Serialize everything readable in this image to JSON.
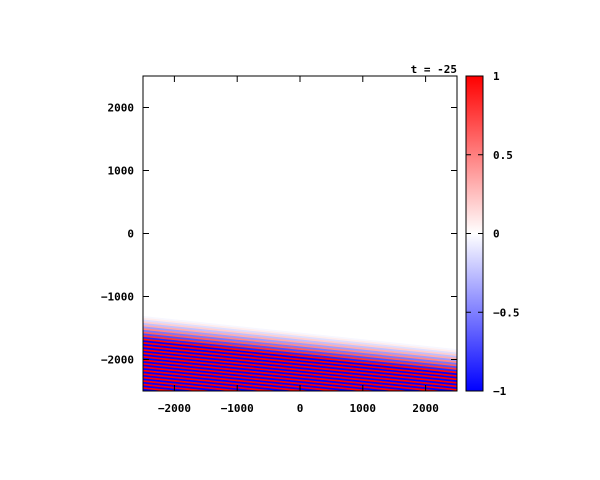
{
  "chart_data": {
    "type": "heatmap",
    "title": "t = -25",
    "xlabel": "",
    "ylabel": "",
    "xlim": [
      -2500,
      2500
    ],
    "ylim": [
      -2500,
      2500
    ],
    "x_ticks": [
      -2000,
      -1000,
      0,
      1000,
      2000
    ],
    "x_tick_labels": [
      "-2000",
      "-1000",
      "0",
      "1000",
      "2000"
    ],
    "y_ticks": [
      -2000,
      -1000,
      0,
      1000,
      2000
    ],
    "y_tick_labels": [
      "-2000",
      "-1000",
      "0",
      "1000",
      "2000"
    ],
    "colorbar": {
      "range": [
        -1,
        1
      ],
      "ticks": [
        -1,
        -0.5,
        0,
        0.5,
        1
      ],
      "tick_labels": [
        "-1",
        "-0.5",
        "0",
        "0.5",
        "1"
      ],
      "colors": {
        "low": "#0000ff",
        "mid": "#ffffff",
        "high": "#ff0000"
      }
    },
    "field": {
      "description_shape": "diagonal wavefronts in lower-left, amplitude decaying toward upper right",
      "wavefront_slope": -0.105,
      "wavelength": 55,
      "front_intercept_y": -1300,
      "decay_length": 400,
      "min_intercept_y": -2700
    }
  }
}
